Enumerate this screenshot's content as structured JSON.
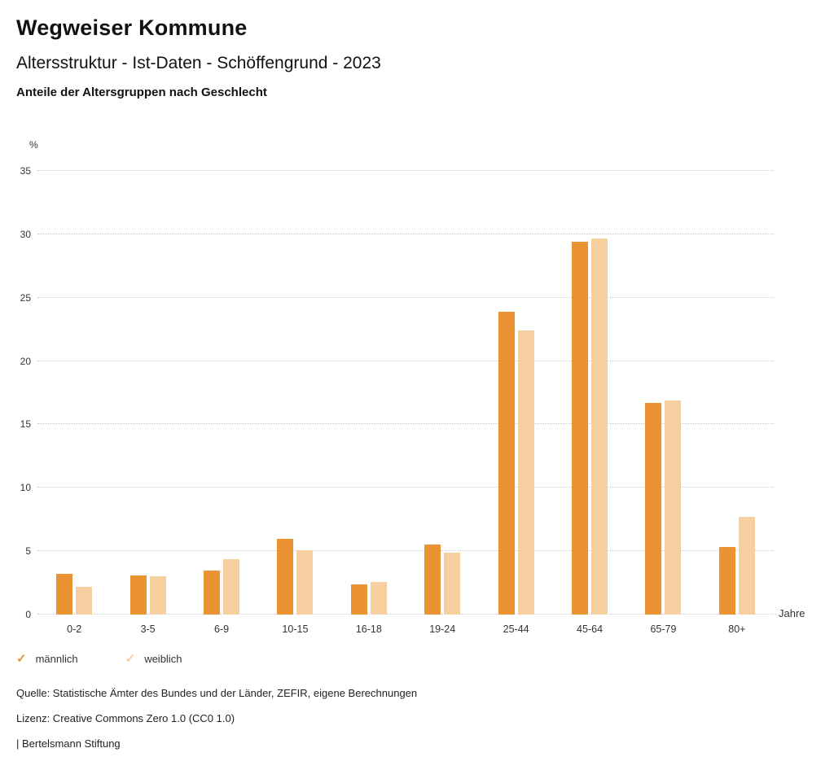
{
  "header": {
    "title": "Wegweiser Kommune",
    "subtitle": "Altersstruktur - Ist-Daten - Schöffengrund - 2023",
    "chart_heading": "Anteile der Altersgruppen nach Geschlecht"
  },
  "chart_data": {
    "type": "bar",
    "title": "Anteile der Altersgruppen nach Geschlecht",
    "categories": [
      "0-2",
      "3-5",
      "6-9",
      "10-15",
      "16-18",
      "19-24",
      "25-44",
      "45-64",
      "65-79",
      "80+"
    ],
    "series": [
      {
        "name": "männlich",
        "color": "#EB9232",
        "values": [
          3.2,
          3.1,
          3.5,
          6.0,
          2.4,
          5.5,
          23.9,
          29.4,
          16.7,
          5.3
        ]
      },
      {
        "name": "weiblich",
        "color": "#F6CFA0",
        "values": [
          2.2,
          3.0,
          4.4,
          5.1,
          2.6,
          4.9,
          22.4,
          29.7,
          16.9,
          7.7
        ]
      }
    ],
    "xlabel": "Jahre",
    "ylabel": "%",
    "ylim": [
      0,
      35
    ],
    "yticks": [
      0,
      5,
      10,
      15,
      20,
      25,
      30,
      35
    ],
    "grid": true,
    "legend_position": "bottom"
  },
  "legend": {
    "check_icon": "✓"
  },
  "footer": {
    "source": "Quelle: Statistische Ämter des Bundes und der Länder, ZEFIR, eigene Berechnungen",
    "license": "Lizenz: Creative Commons Zero 1.0 (CC0 1.0)",
    "attribution": "| Bertelsmann Stiftung"
  }
}
